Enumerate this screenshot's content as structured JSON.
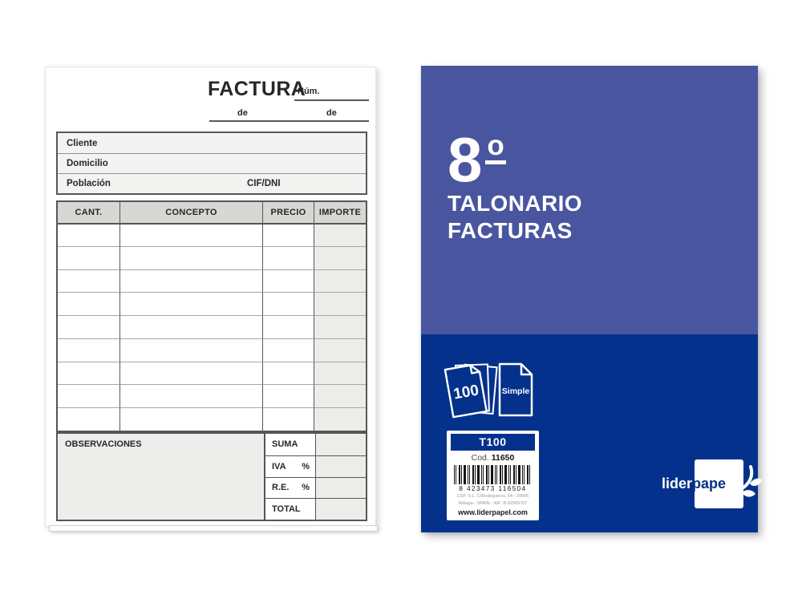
{
  "invoice": {
    "title": "FACTURA",
    "num_label": "Núm.",
    "date_preposition_1": "de",
    "date_preposition_2": "de",
    "client_fields": [
      "Cliente",
      "Domicilio",
      "Población"
    ],
    "cif_label": "CIF/DNI",
    "table_headers": [
      "CANT.",
      "CONCEPTO",
      "PRECIO",
      "IMPORTE"
    ],
    "table_empty_rows": 9,
    "observations_label": "OBSERVACIONES",
    "totals": [
      {
        "label": "SUMA",
        "suffix": ""
      },
      {
        "label": "IVA",
        "suffix": "%"
      },
      {
        "label": "R.E.",
        "suffix": "%"
      },
      {
        "label": "TOTAL",
        "suffix": ""
      }
    ]
  },
  "cover": {
    "format_number": "8",
    "format_ordinal": "o",
    "title_line1": "TALONARIO",
    "title_line2": "FACTURAS",
    "sheet_count": "100",
    "copy_type": "Simple",
    "product_label": {
      "model": "T100",
      "code_label": "Cod.",
      "code_value": "11650",
      "barcode_digits": "8 423473 116504",
      "address_line1": "CSP, S.L. C/Bodegueros, 54 - 29006",
      "address_line2": "Málaga - SPAIN - NIF: B-92969757",
      "website": "www.liderpapel.com"
    },
    "brand": {
      "name_part1": "lider",
      "name_part2": "pape"
    },
    "colors": {
      "cover_top": "#4A55A0",
      "cover_bottom": "#04318C"
    }
  }
}
